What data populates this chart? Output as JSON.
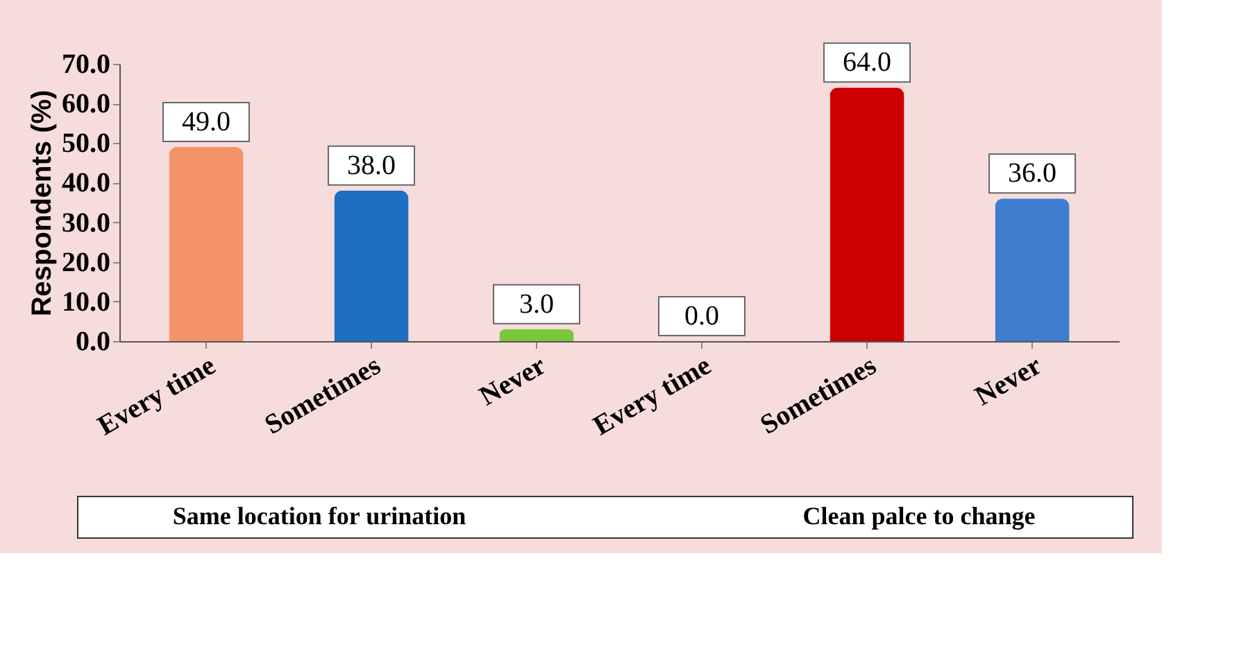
{
  "chart_data": {
    "type": "bar",
    "ylabel": "Respondents (%)",
    "categories": [
      "Every time",
      "Sometimes",
      "Never",
      "Every time",
      "Sometimes",
      "Never"
    ],
    "values": [
      49,
      38,
      3,
      0,
      64,
      36
    ],
    "value_labels": [
      "49.0",
      "38.0",
      "3.0",
      "0.0",
      "64.0",
      "36.0"
    ],
    "colors": [
      "#f4926a",
      "#1c6fc2",
      "#7cc63a",
      "#9e1a1a",
      "#cc0000",
      "#3f7ecf"
    ],
    "ylim": [
      0,
      70
    ],
    "yticks": [
      {
        "value": 0,
        "label": "0.0"
      },
      {
        "value": 10,
        "label": "10.0"
      },
      {
        "value": 20,
        "label": "20.0"
      },
      {
        "value": 30,
        "label": "30.0"
      },
      {
        "value": 40,
        "label": "40.0"
      },
      {
        "value": 50,
        "label": "50.0"
      },
      {
        "value": 60,
        "label": "60.0"
      },
      {
        "value": 70,
        "label": "70.0"
      }
    ],
    "annotations": [
      "Same location for urination",
      "Clean palce to change"
    ],
    "grid": false
  }
}
